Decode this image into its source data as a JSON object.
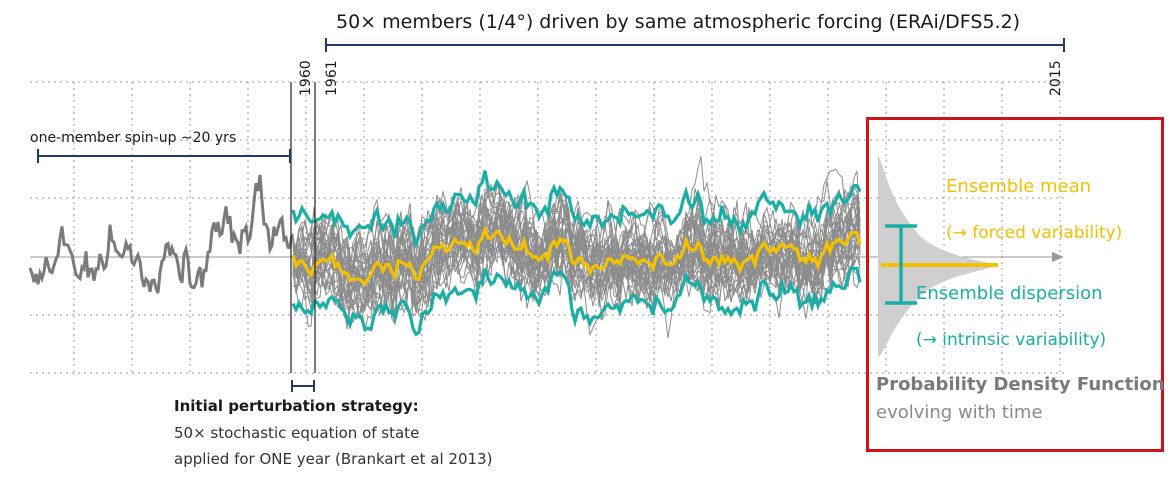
{
  "header": {
    "text": "50× members (1/4°) driven by same atmospheric forcing (ERAi/DFS5.2)"
  },
  "years": {
    "start": "1960",
    "ensemble_start": "1961",
    "end": "2015"
  },
  "spinup": {
    "label": "one-member spin-up ∼20 yrs"
  },
  "perturbation": {
    "title": "Initial perturbation strategy:",
    "line1": "50× stochastic equation of state",
    "line2": "applied for ONE year (Brankart et al 2013)"
  },
  "pdf_panel": {
    "mean_title": "Ensemble mean",
    "mean_sub": "(→ forced variability)",
    "dispersion_title": "Ensemble dispersion",
    "dispersion_sub": "(→ intrinsic variability)",
    "pdf_title": "Probability Density Function",
    "pdf_sub": "evolving with time"
  },
  "colors": {
    "mean": "#f2c100",
    "dispersion": "#1aaea6",
    "members": "#8c8c8c",
    "spinup": "#7a7a7a",
    "box": "#d0121b",
    "bracket": "#1f3a6b"
  }
}
